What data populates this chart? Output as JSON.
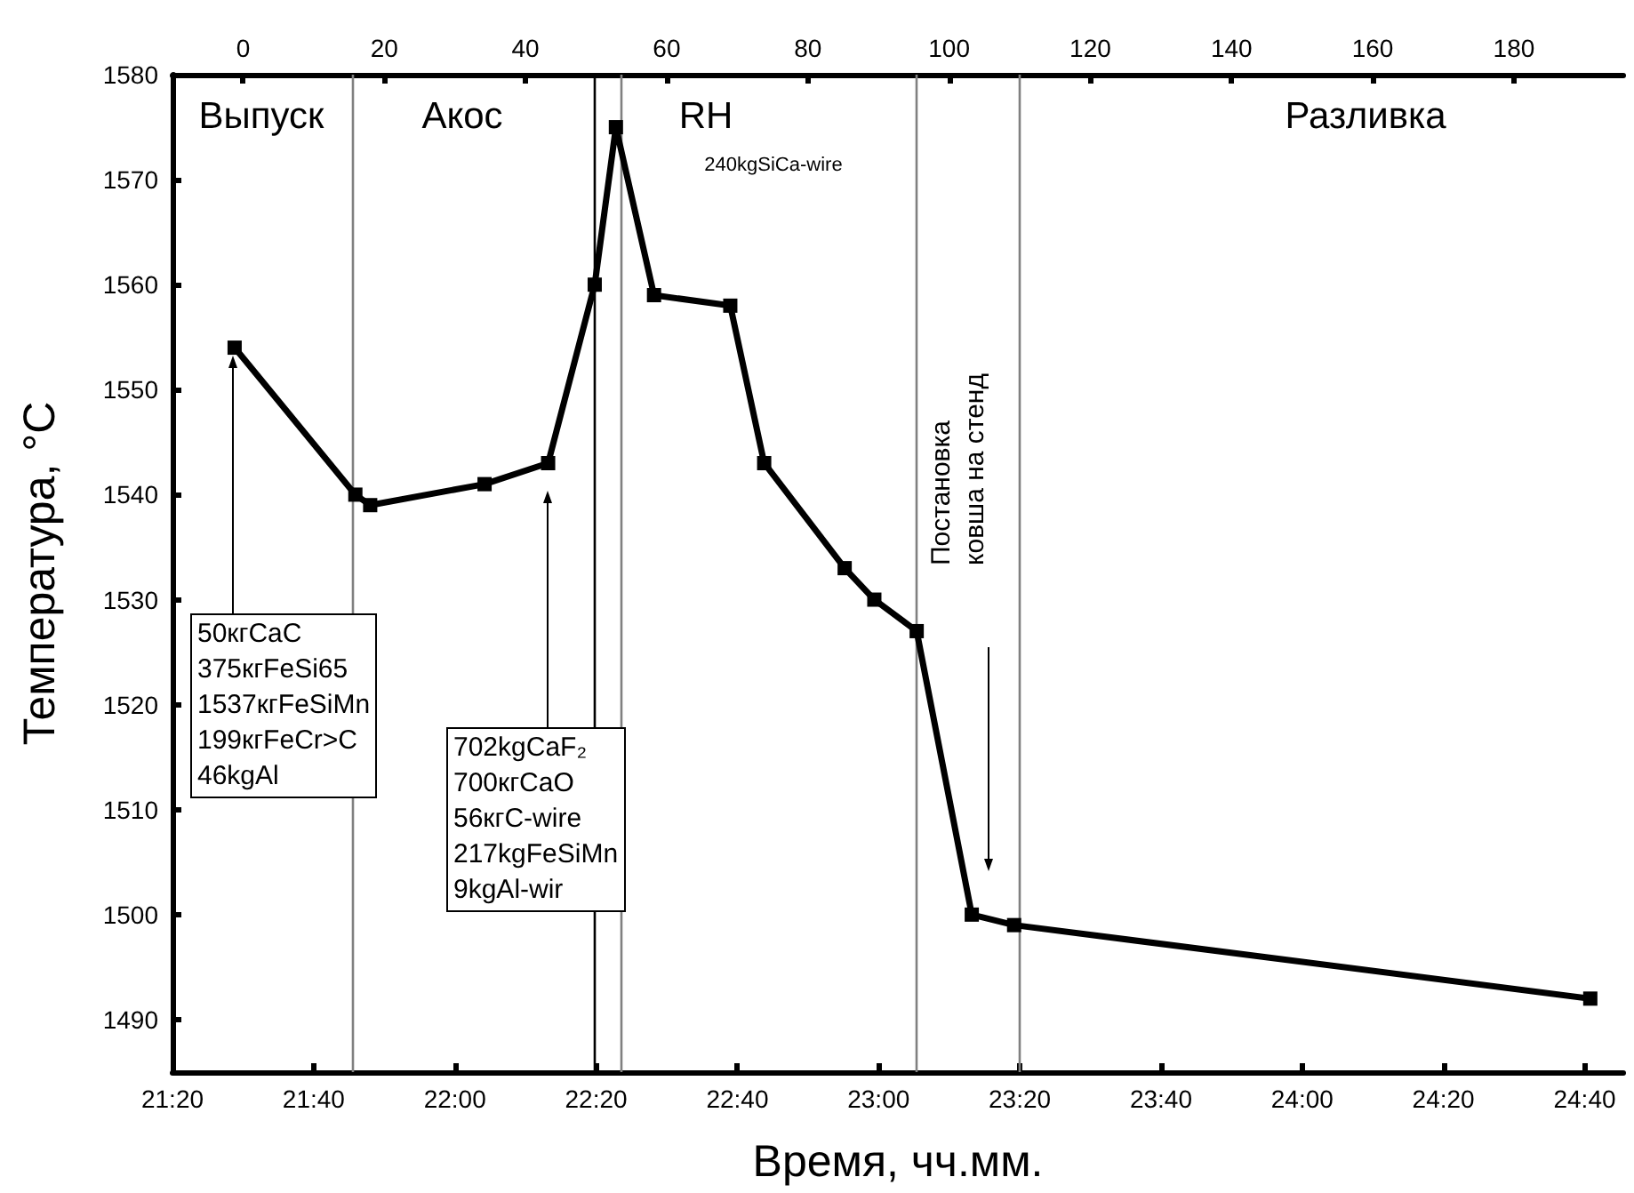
{
  "chart_data": {
    "type": "line",
    "xlabel": "Время, чч.мм.",
    "ylabel": "Температура, °C",
    "series": [
      {
        "color": "#000000",
        "x": [
          21.48,
          21.765,
          21.8,
          22.07,
          22.22,
          22.33,
          22.38,
          22.47,
          22.65,
          22.73,
          22.92,
          22.99,
          23.09,
          23.22,
          23.32,
          24.68
        ],
        "values": [
          1554,
          1540,
          1539,
          1541,
          1543,
          1560,
          1575,
          1559,
          1558,
          1543,
          1533,
          1530,
          1527,
          1500,
          1499,
          1492
        ]
      }
    ],
    "xlim": [
      21.3333,
      24.758
    ],
    "xticks": [
      {
        "value": 21.3333,
        "label": "21:20"
      },
      {
        "value": 21.6667,
        "label": "21:40"
      },
      {
        "value": 22,
        "label": "22:00"
      },
      {
        "value": 22.3333,
        "label": "22:20"
      },
      {
        "value": 22.6667,
        "label": "22:40"
      },
      {
        "value": 23,
        "label": "23:00"
      },
      {
        "value": 23.3333,
        "label": "23:20"
      },
      {
        "value": 23.6667,
        "label": "23:40"
      },
      {
        "value": 24,
        "label": "24:00"
      },
      {
        "value": 24.3333,
        "label": "24:20"
      },
      {
        "value": 24.6667,
        "label": "24:40"
      }
    ],
    "x2lim": [
      -10,
      195.5
    ],
    "x2ticks": [
      0,
      20,
      40,
      60,
      80,
      100,
      120,
      140,
      160,
      180
    ],
    "ylim": [
      1485,
      1580
    ],
    "yticks": [
      1490,
      1500,
      1510,
      1520,
      1530,
      1540,
      1550,
      1560,
      1570,
      1580
    ],
    "marker": "square",
    "line_style": "solid",
    "grid": false,
    "ref_lines": [
      {
        "axis": "x",
        "value": 21.76,
        "color": "#808080"
      },
      {
        "axis": "x",
        "value": 22.33,
        "color": "#000000"
      },
      {
        "axis": "x",
        "value": 22.39,
        "color": "#808080"
      },
      {
        "axis": "x",
        "value": 23.095,
        "color": "#808080"
      },
      {
        "axis": "x",
        "value": 23.327,
        "color": "#808080"
      }
    ],
    "annotations": [
      "Выпуск",
      "Акос",
      "RH",
      "Разливка",
      "240kgSiCa-wire",
      "Постановка\nковша на стенд",
      "50кгCaC\n375кгFeSi65\n1537кгFeSiMn\n199кгFeCr>C\n46kgAl",
      "702kgCaF₂\n700кгCaO\n56кгC-wire\n217kgFeSiMn\n9kgAl-wir"
    ]
  }
}
